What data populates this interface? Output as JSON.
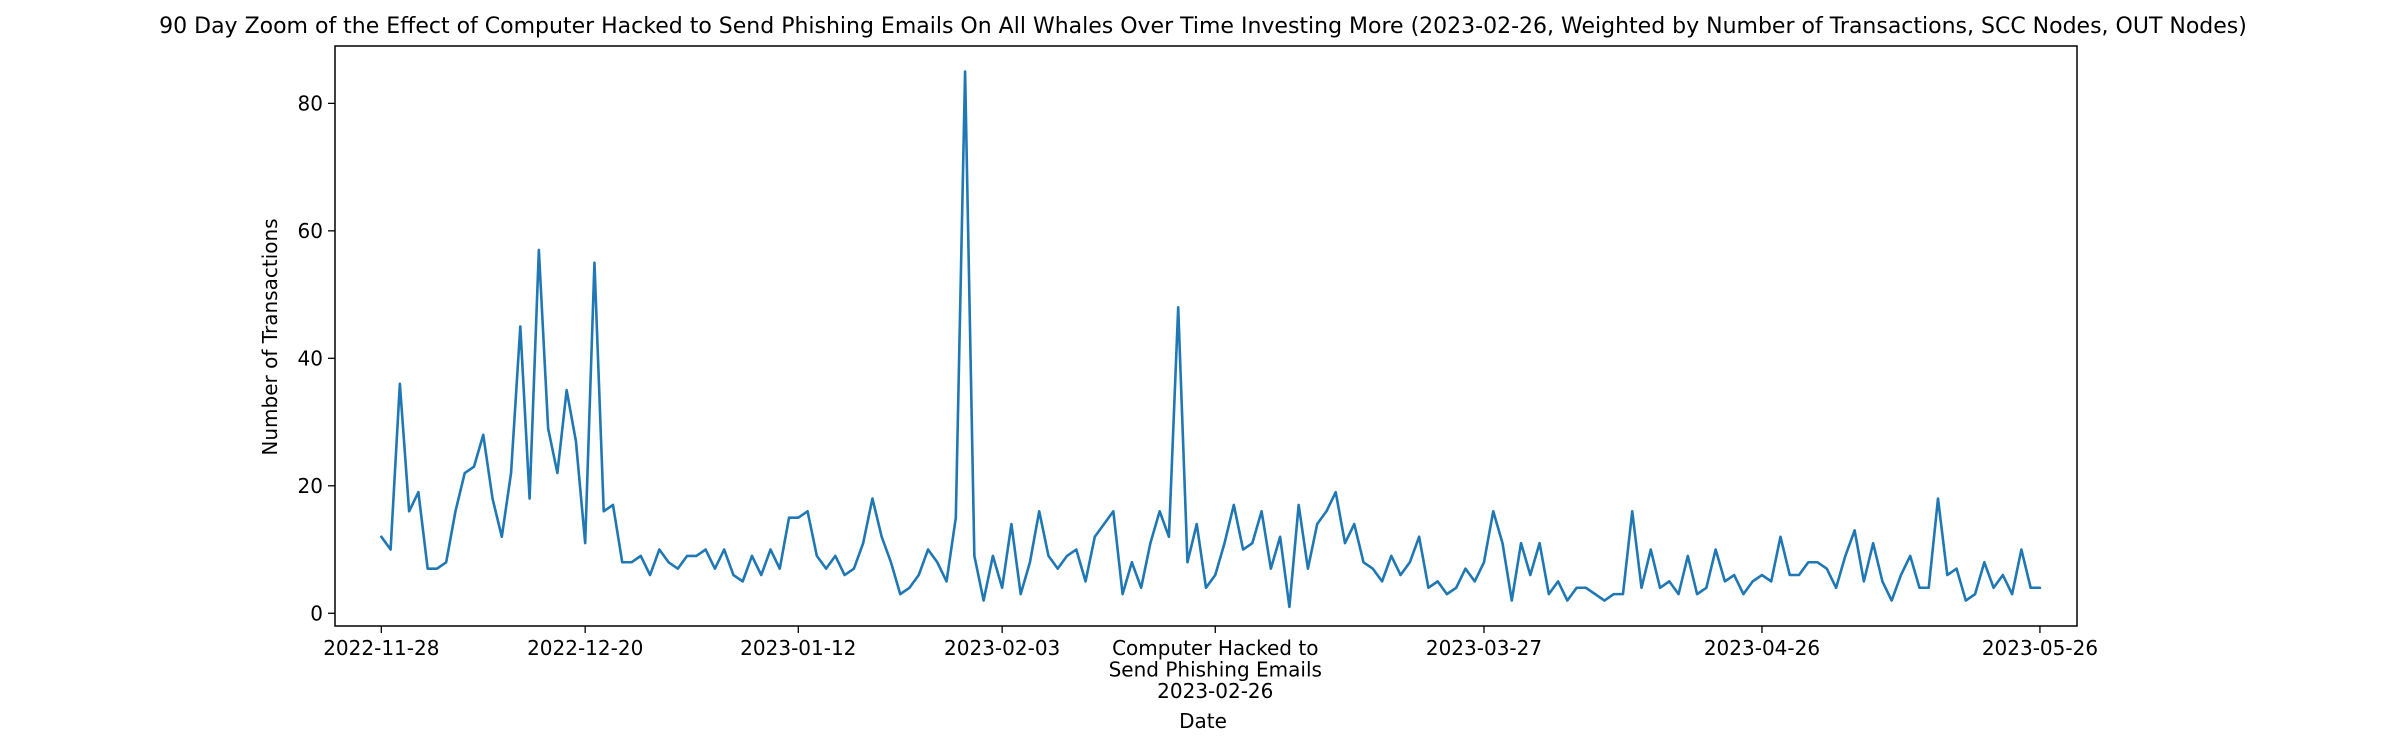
{
  "chart_data": {
    "type": "line",
    "title": "90 Day Zoom of the Effect of Computer Hacked to Send Phishing Emails On All Whales Over Time Investing More (2023-02-26, Weighted by Number of Transactions, SCC Nodes, OUT Nodes)",
    "xlabel": "Date",
    "ylabel": "Number of Transactions",
    "ylim": [
      -2,
      89
    ],
    "xlim": [
      "2022-11-23",
      "2023-05-30"
    ],
    "grid": false,
    "legend": "none",
    "line_color": "#1f77b4",
    "x_ticks": [
      {
        "date": "2022-11-28",
        "label": "2022-11-28"
      },
      {
        "date": "2022-12-20",
        "label": "2022-12-20"
      },
      {
        "date": "2023-01-12",
        "label": "2023-01-12"
      },
      {
        "date": "2023-02-03",
        "label": "2023-02-03"
      },
      {
        "date": "2023-02-26",
        "label": "Computer Hacked to\nSend Phishing Emails\n2023-02-26"
      },
      {
        "date": "2023-03-27",
        "label": "2023-03-27"
      },
      {
        "date": "2023-04-26",
        "label": "2023-04-26"
      },
      {
        "date": "2023-05-26",
        "label": "2023-05-26"
      }
    ],
    "y_ticks": [
      0,
      20,
      40,
      60,
      80
    ],
    "series": [
      {
        "x_start": "2022-11-28",
        "x_step_days": 1,
        "values": [
          12,
          10,
          36,
          16,
          19,
          7,
          7,
          8,
          16,
          22,
          23,
          28,
          18,
          12,
          22,
          45,
          18,
          57,
          29,
          22,
          35,
          27,
          11,
          55,
          16,
          17,
          8,
          8,
          9,
          6,
          10,
          8,
          7,
          9,
          9,
          10,
          7,
          10,
          6,
          5,
          9,
          6,
          10,
          7,
          15,
          15,
          16,
          9,
          7,
          9,
          6,
          7,
          11,
          18,
          12,
          8,
          3,
          4,
          6,
          10,
          8,
          5,
          15,
          85,
          9,
          2,
          9,
          4,
          14,
          3,
          8,
          16,
          9,
          7,
          9,
          10,
          5,
          12,
          14,
          16,
          3,
          8,
          4,
          11,
          16,
          12,
          48,
          8,
          14,
          4,
          6,
          11,
          17,
          10,
          11,
          16,
          7,
          12,
          1,
          17,
          7,
          14,
          16,
          19,
          11,
          14,
          8,
          7,
          5,
          9,
          6,
          8,
          12,
          4,
          5,
          3,
          4,
          7,
          5,
          8,
          16,
          11,
          2,
          11,
          6,
          11,
          3,
          5,
          2,
          4,
          4,
          3,
          2,
          3,
          3,
          16,
          4,
          10,
          4,
          5,
          3,
          9,
          3,
          4,
          10,
          5,
          6,
          3,
          5,
          6,
          5,
          12,
          6,
          6,
          8,
          8,
          7,
          4,
          9,
          13,
          5,
          11,
          5,
          2,
          6,
          9,
          4,
          4,
          18,
          6,
          7,
          2,
          3,
          8,
          4,
          6,
          3,
          10,
          4,
          4
        ]
      }
    ]
  }
}
